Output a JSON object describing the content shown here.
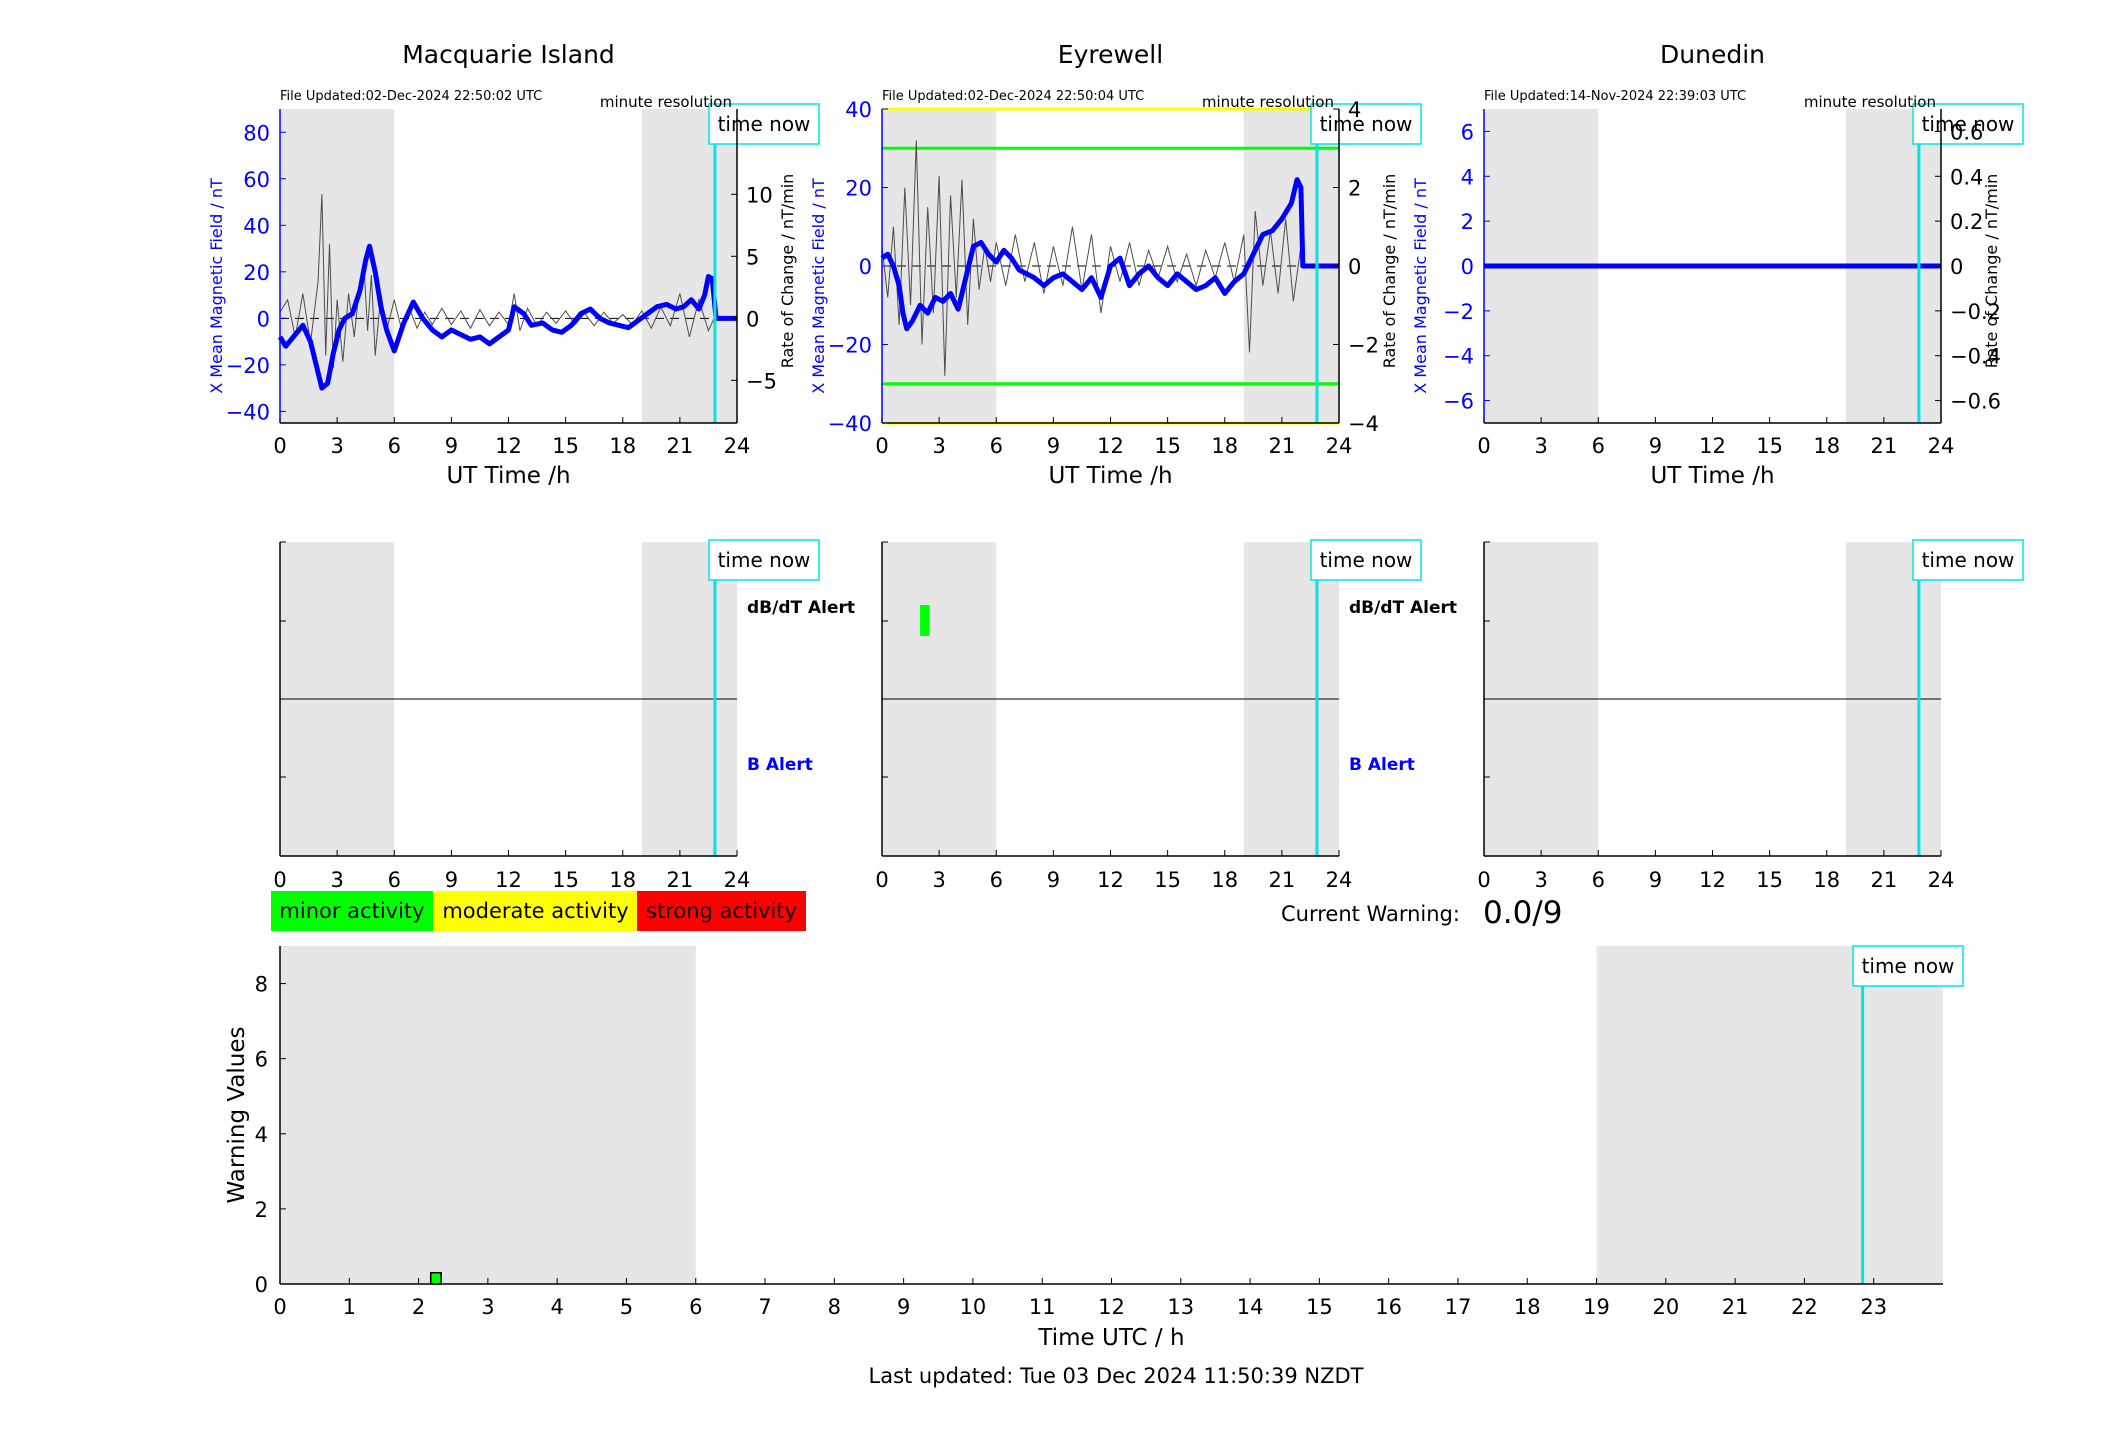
{
  "figure": {
    "last_updated": "Last updated: Tue 03 Dec 2024 11:50:39 NZDT",
    "time_now_label": "time now",
    "current_warning_label": "Current Warning:",
    "current_warning_value": "0.0/9",
    "legend": [
      {
        "label": "minor activity",
        "color": "#00ff00"
      },
      {
        "label": "moderate activity",
        "color": "#ffff00"
      },
      {
        "label": "strong activity",
        "color": "#ff0000"
      }
    ],
    "colors": {
      "field": "#0000ff",
      "rate": "#4d4d4d",
      "night_shading": "#e6e6e6",
      "time_now": "#00e5e5",
      "threshold_green": "#00ff00",
      "threshold_yellow": "#ffff00"
    },
    "time_now_utc_h": 22.84
  },
  "chart_data": [
    {
      "type": "line",
      "station": "Macquarie Island",
      "file_updated": "File Updated:02-Dec-2024 22:50:02 UTC",
      "resolution": "minute resolution",
      "xlabel": "UT Time /h",
      "ylabel_left": "X Mean Magnetic Field / nT",
      "ylabel_right": "Rate of Change / nT/min",
      "xlim": [
        0,
        24
      ],
      "xticks": [
        0,
        3,
        6,
        9,
        12,
        15,
        18,
        21,
        24
      ],
      "ylim_left": [
        -45,
        90
      ],
      "yticks_left": [
        -40,
        -20,
        0,
        20,
        40,
        60,
        80
      ],
      "ylim_right": [
        -8.4375,
        16.875
      ],
      "yticks_right": [
        -5,
        0,
        5,
        10
      ],
      "shaded_utc_h": [
        [
          0,
          6
        ],
        [
          19,
          24
        ]
      ],
      "threshold_lines": [],
      "series": [
        {
          "name": "X",
          "role": "field",
          "x": [
            0,
            0.3,
            0.7,
            1.2,
            1.6,
            1.9,
            2.2,
            2.5,
            2.8,
            3.1,
            3.4,
            3.8,
            4.2,
            4.5,
            4.7,
            5.0,
            5.3,
            5.6,
            6.0,
            6.5,
            7.0,
            7.5,
            8.0,
            8.5,
            9.0,
            9.5,
            10.0,
            10.5,
            11.0,
            11.5,
            12.0,
            12.3,
            12.8,
            13.2,
            13.8,
            14.3,
            14.8,
            15.3,
            15.8,
            16.3,
            16.8,
            17.3,
            17.8,
            18.3,
            18.8,
            19.3,
            19.8,
            20.3,
            20.8,
            21.2,
            21.6,
            22.0,
            22.3,
            22.5,
            22.7,
            22.9,
            23.3,
            24.0
          ],
          "y": [
            -8,
            -12,
            -8,
            -3,
            -10,
            -20,
            -30,
            -28,
            -15,
            -5,
            0,
            2,
            12,
            25,
            31,
            20,
            5,
            -5,
            -14,
            -2,
            7,
            0,
            -5,
            -8,
            -5,
            -7,
            -9,
            -8,
            -11,
            -8,
            -5,
            5,
            2,
            -3,
            -2,
            -5,
            -6,
            -3,
            2,
            4,
            0,
            -2,
            -3,
            -4,
            -1,
            2,
            5,
            6,
            4,
            5,
            8,
            4,
            10,
            18,
            17,
            0,
            0,
            0
          ]
        },
        {
          "name": "dB/dt",
          "role": "rate",
          "x": [
            0,
            0.4,
            0.8,
            1.2,
            1.6,
            2.0,
            2.2,
            2.4,
            2.6,
            2.8,
            3.0,
            3.3,
            3.6,
            3.9,
            4.2,
            4.4,
            4.6,
            4.8,
            5.0,
            5.3,
            5.6,
            6.0,
            6.4,
            6.8,
            7.2,
            7.6,
            8.0,
            8.5,
            9.0,
            9.5,
            10.0,
            10.5,
            11.0,
            11.5,
            12.0,
            12.3,
            12.6,
            13.0,
            13.5,
            14.0,
            14.5,
            15.0,
            15.5,
            16.0,
            16.5,
            17.0,
            17.5,
            18.0,
            18.5,
            19.0,
            19.5,
            20.0,
            20.5,
            21.0,
            21.5,
            22.0,
            22.5,
            22.8
          ],
          "y": [
            0.5,
            1.5,
            -1.5,
            2,
            -2,
            3,
            10,
            -3,
            6,
            -4,
            1.5,
            -3.5,
            2,
            -1.5,
            3,
            4.5,
            -1,
            3.5,
            -3,
            2,
            -1,
            1.5,
            -1,
            0.8,
            -0.8,
            0.5,
            -0.5,
            0.8,
            -0.5,
            0.6,
            -0.8,
            0.7,
            -0.6,
            0.5,
            -0.5,
            2,
            -1,
            0.8,
            -0.6,
            0.5,
            -0.4,
            0.6,
            -0.5,
            0.4,
            -0.6,
            0.5,
            -0.4,
            0.3,
            -0.5,
            0.6,
            -0.8,
            0.9,
            -0.6,
            2,
            -1.5,
            1.5,
            -1,
            0
          ]
        }
      ]
    },
    {
      "type": "line",
      "station": "Eyrewell",
      "file_updated": "File Updated:02-Dec-2024 22:50:04 UTC",
      "resolution": "minute resolution",
      "xlabel": "UT Time /h",
      "ylabel_left": "X Mean Magnetic Field / nT",
      "ylabel_right": "Rate of Change / nT/min",
      "xlim": [
        0,
        24
      ],
      "xticks": [
        0,
        3,
        6,
        9,
        12,
        15,
        18,
        21,
        24
      ],
      "ylim_left": [
        -40,
        40
      ],
      "yticks_left": [
        -40,
        -20,
        0,
        20,
        40
      ],
      "ylim_right": [
        -4,
        4
      ],
      "yticks_right": [
        -4,
        -2,
        0,
        2,
        4
      ],
      "shaded_utc_h": [
        [
          0,
          6
        ],
        [
          19,
          24
        ]
      ],
      "threshold_lines": [
        {
          "y": 30,
          "color": "#00ff00"
        },
        {
          "y": -30,
          "color": "#00ff00"
        },
        {
          "y": 40,
          "color": "#ffff00"
        },
        {
          "y": -40,
          "color": "#ffff00"
        }
      ],
      "series": [
        {
          "name": "X",
          "role": "field",
          "x": [
            0,
            0.3,
            0.6,
            0.9,
            1.1,
            1.3,
            1.6,
            2.0,
            2.4,
            2.8,
            3.2,
            3.6,
            4.0,
            4.4,
            4.8,
            5.2,
            5.6,
            6.0,
            6.4,
            6.8,
            7.2,
            7.6,
            8.0,
            8.5,
            9.0,
            9.5,
            10.0,
            10.5,
            11.0,
            11.5,
            12.0,
            12.5,
            13.0,
            13.5,
            14.0,
            14.5,
            15.0,
            15.5,
            16.0,
            16.5,
            17.0,
            17.5,
            18.0,
            18.5,
            19.0,
            19.5,
            20.0,
            20.5,
            21.0,
            21.5,
            21.8,
            22.0,
            22.1,
            22.3,
            24.0
          ],
          "y": [
            2,
            3,
            0,
            -5,
            -12,
            -16,
            -14,
            -10,
            -12,
            -8,
            -9,
            -7,
            -11,
            -3,
            5,
            6,
            3,
            1,
            4,
            2,
            -1,
            -2,
            -3,
            -5,
            -3,
            -2,
            -4,
            -6,
            -3,
            -8,
            0,
            2,
            -5,
            -2,
            0,
            -3,
            -5,
            -2,
            -4,
            -6,
            -5,
            -3,
            -7,
            -4,
            -2,
            3,
            8,
            9,
            12,
            16,
            22,
            20,
            0,
            0,
            0
          ]
        },
        {
          "name": "dB/dt",
          "role": "rate",
          "x": [
            0,
            0.3,
            0.6,
            0.9,
            1.2,
            1.5,
            1.8,
            2.1,
            2.4,
            2.7,
            3.0,
            3.3,
            3.6,
            3.9,
            4.2,
            4.5,
            4.8,
            5.1,
            5.4,
            5.7,
            6.0,
            6.5,
            7.0,
            7.5,
            8.0,
            8.5,
            9.0,
            9.5,
            10.0,
            10.5,
            11.0,
            11.5,
            12.0,
            12.5,
            13.0,
            13.5,
            14.0,
            14.5,
            15.0,
            15.5,
            16.0,
            16.5,
            17.0,
            17.5,
            18.0,
            18.5,
            19.0,
            19.3,
            19.6,
            20.0,
            20.4,
            20.8,
            21.2,
            21.6,
            22.0
          ],
          "y": [
            0.5,
            -0.8,
            1,
            -1.5,
            2,
            -1,
            3.2,
            -2,
            1.5,
            -1.2,
            2.3,
            -2.8,
            1.8,
            -0.8,
            2.2,
            -1.5,
            1.2,
            -0.6,
            0.5,
            -0.4,
            0.6,
            -0.5,
            0.8,
            -0.4,
            0.6,
            -0.7,
            0.5,
            -0.5,
            1.0,
            -0.6,
            0.8,
            -1.2,
            0.5,
            -0.4,
            0.6,
            -0.5,
            0.4,
            -0.3,
            0.5,
            -0.4,
            0.3,
            -0.5,
            0.4,
            -0.3,
            0.6,
            -0.4,
            0.8,
            -2.2,
            1.4,
            -0.5,
            0.9,
            -0.7,
            1.2,
            -0.9,
            0.5
          ]
        }
      ]
    },
    {
      "type": "line",
      "station": "Dunedin",
      "file_updated": "File Updated:14-Nov-2024 22:39:03 UTC",
      "resolution": "minute resolution",
      "xlabel": "UT Time /h",
      "ylabel_left": "X Mean Magnetic Field / nT",
      "ylabel_right": "Rate of Change / nT/min",
      "xlim": [
        0,
        24
      ],
      "xticks": [
        0,
        3,
        6,
        9,
        12,
        15,
        18,
        21,
        24
      ],
      "ylim_left": [
        -7,
        7
      ],
      "yticks_left": [
        -6,
        -4,
        -2,
        0,
        2,
        4,
        6
      ],
      "ylim_right": [
        -0.7,
        0.7
      ],
      "yticks_right": [
        -0.6,
        -0.4,
        -0.2,
        0,
        0.2,
        0.4,
        0.6
      ],
      "shaded_utc_h": [
        [
          0,
          6
        ],
        [
          19,
          24
        ]
      ],
      "threshold_lines": [],
      "series": [
        {
          "name": "X",
          "role": "field",
          "x": [
            0,
            24
          ],
          "y": [
            0,
            0
          ]
        },
        {
          "name": "dB/dt",
          "role": "rate",
          "x": [
            0,
            24
          ],
          "y": [
            0,
            0
          ]
        }
      ]
    },
    {
      "type": "bar",
      "panel": "alerts",
      "stations": [
        "Macquarie Island",
        "Eyrewell",
        "Dunedin"
      ],
      "xticks": [
        0,
        3,
        6,
        9,
        12,
        15,
        18,
        21,
        24
      ],
      "labels": {
        "dbdt": "dB/dT Alert",
        "b": "B Alert"
      },
      "alerts": [
        {
          "station": "Eyrewell",
          "type": "dB/dT Alert",
          "level": "minor activity",
          "start_utc_h": 2.0,
          "end_utc_h": 2.5
        }
      ]
    },
    {
      "type": "bar",
      "panel": "warning",
      "xlabel": "Time UTC / h",
      "ylabel": "Warning Values",
      "xlim": [
        0,
        24
      ],
      "xticks": [
        0,
        1,
        2,
        3,
        4,
        5,
        6,
        7,
        8,
        9,
        10,
        11,
        12,
        13,
        14,
        15,
        16,
        17,
        18,
        19,
        20,
        21,
        22,
        23
      ],
      "ylim": [
        0,
        9
      ],
      "yticks": [
        0,
        2,
        4,
        6,
        8
      ],
      "shaded_utc_h": [
        [
          0,
          6
        ],
        [
          19,
          24
        ]
      ],
      "bars": [
        {
          "x": 2.25,
          "width": 0.15,
          "value": 0.3,
          "color": "#00ff00"
        }
      ]
    }
  ]
}
